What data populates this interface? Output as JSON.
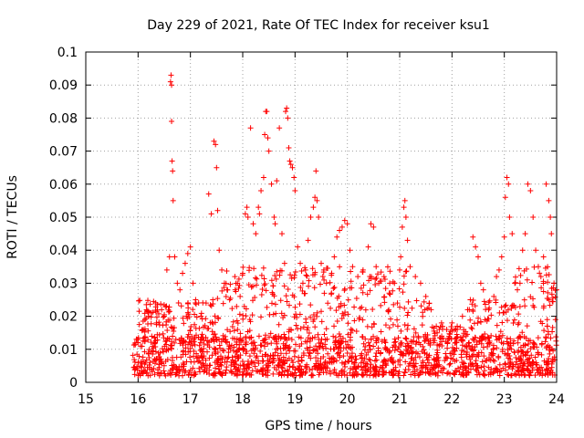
{
  "chart_data": {
    "type": "scatter",
    "title": "Day 229 of 2021, Rate Of TEC Index for receiver ksu1",
    "xlabel": "GPS time / hours",
    "ylabel": "ROTI / TECUs",
    "xlim": [
      15,
      24
    ],
    "ylim": [
      0,
      0.1
    ],
    "x_ticks": [
      "15",
      "16",
      "17",
      "18",
      "19",
      "20",
      "21",
      "22",
      "23",
      "24"
    ],
    "y_ticks": [
      "0",
      "0.01",
      "0.02",
      "0.03",
      "0.04",
      "0.05",
      "0.06",
      "0.07",
      "0.08",
      "0.09",
      "0.1"
    ],
    "grid": true,
    "legend": "none",
    "marker": "+",
    "series_color": "#ff0000",
    "points": [
      [
        16.0,
        0.012
      ],
      [
        16.1,
        0.016
      ],
      [
        16.2,
        0.02
      ],
      [
        16.25,
        0.021
      ],
      [
        16.35,
        0.018
      ],
      [
        16.45,
        0.022
      ],
      [
        16.5,
        0.02
      ],
      [
        16.55,
        0.034
      ],
      [
        16.6,
        0.038
      ],
      [
        16.62,
        0.091
      ],
      [
        16.63,
        0.093
      ],
      [
        16.64,
        0.09
      ],
      [
        16.64,
        0.079
      ],
      [
        16.65,
        0.067
      ],
      [
        16.66,
        0.064
      ],
      [
        16.67,
        0.055
      ],
      [
        16.7,
        0.038
      ],
      [
        16.75,
        0.03
      ],
      [
        16.8,
        0.028
      ],
      [
        16.85,
        0.033
      ],
      [
        16.9,
        0.036
      ],
      [
        16.95,
        0.039
      ],
      [
        17.0,
        0.041
      ],
      [
        17.05,
        0.03
      ],
      [
        17.1,
        0.025
      ],
      [
        17.2,
        0.02
      ],
      [
        17.3,
        0.024
      ],
      [
        17.35,
        0.057
      ],
      [
        17.4,
        0.051
      ],
      [
        17.45,
        0.073
      ],
      [
        17.48,
        0.072
      ],
      [
        17.5,
        0.065
      ],
      [
        17.52,
        0.052
      ],
      [
        17.55,
        0.04
      ],
      [
        17.6,
        0.034
      ],
      [
        17.65,
        0.03
      ],
      [
        17.7,
        0.028
      ],
      [
        17.75,
        0.025
      ],
      [
        17.85,
        0.032
      ],
      [
        17.9,
        0.03
      ],
      [
        17.95,
        0.026
      ],
      [
        18.0,
        0.033
      ],
      [
        18.05,
        0.051
      ],
      [
        18.08,
        0.053
      ],
      [
        18.1,
        0.05
      ],
      [
        18.15,
        0.077
      ],
      [
        18.2,
        0.048
      ],
      [
        18.25,
        0.045
      ],
      [
        18.3,
        0.053
      ],
      [
        18.32,
        0.051
      ],
      [
        18.35,
        0.058
      ],
      [
        18.4,
        0.062
      ],
      [
        18.42,
        0.075
      ],
      [
        18.44,
        0.082
      ],
      [
        18.46,
        0.082
      ],
      [
        18.48,
        0.074
      ],
      [
        18.5,
        0.07
      ],
      [
        18.55,
        0.06
      ],
      [
        18.6,
        0.05
      ],
      [
        18.62,
        0.048
      ],
      [
        18.65,
        0.061
      ],
      [
        18.7,
        0.077
      ],
      [
        18.75,
        0.045
      ],
      [
        18.8,
        0.036
      ],
      [
        18.82,
        0.082
      ],
      [
        18.84,
        0.083
      ],
      [
        18.86,
        0.08
      ],
      [
        18.88,
        0.071
      ],
      [
        18.9,
        0.067
      ],
      [
        18.92,
        0.066
      ],
      [
        18.95,
        0.065
      ],
      [
        18.98,
        0.062
      ],
      [
        19.0,
        0.058
      ],
      [
        19.05,
        0.041
      ],
      [
        19.1,
        0.036
      ],
      [
        19.15,
        0.03
      ],
      [
        19.2,
        0.034
      ],
      [
        19.25,
        0.043
      ],
      [
        19.3,
        0.05
      ],
      [
        19.35,
        0.053
      ],
      [
        19.38,
        0.056
      ],
      [
        19.4,
        0.064
      ],
      [
        19.42,
        0.055
      ],
      [
        19.45,
        0.05
      ],
      [
        19.5,
        0.036
      ],
      [
        19.55,
        0.034
      ],
      [
        19.6,
        0.03
      ],
      [
        19.7,
        0.033
      ],
      [
        19.75,
        0.038
      ],
      [
        19.8,
        0.044
      ],
      [
        19.85,
        0.046
      ],
      [
        19.9,
        0.047
      ],
      [
        19.95,
        0.049
      ],
      [
        20.0,
        0.048
      ],
      [
        20.05,
        0.04
      ],
      [
        20.1,
        0.035
      ],
      [
        20.2,
        0.032
      ],
      [
        20.3,
        0.034
      ],
      [
        20.4,
        0.041
      ],
      [
        20.45,
        0.048
      ],
      [
        20.5,
        0.047
      ],
      [
        20.55,
        0.035
      ],
      [
        20.6,
        0.03
      ],
      [
        20.7,
        0.032
      ],
      [
        20.8,
        0.027
      ],
      [
        20.9,
        0.03
      ],
      [
        21.0,
        0.034
      ],
      [
        21.02,
        0.038
      ],
      [
        21.05,
        0.047
      ],
      [
        21.08,
        0.053
      ],
      [
        21.1,
        0.055
      ],
      [
        21.12,
        0.05
      ],
      [
        21.15,
        0.043
      ],
      [
        21.2,
        0.035
      ],
      [
        21.3,
        0.032
      ],
      [
        21.4,
        0.03
      ],
      [
        21.5,
        0.026
      ],
      [
        21.6,
        0.022
      ],
      [
        21.7,
        0.017
      ],
      [
        21.8,
        0.018
      ],
      [
        21.9,
        0.016
      ],
      [
        22.0,
        0.018
      ],
      [
        22.1,
        0.017
      ],
      [
        22.2,
        0.02
      ],
      [
        22.3,
        0.022
      ],
      [
        22.35,
        0.025
      ],
      [
        22.4,
        0.044
      ],
      [
        22.45,
        0.041
      ],
      [
        22.5,
        0.038
      ],
      [
        22.55,
        0.03
      ],
      [
        22.6,
        0.028
      ],
      [
        22.7,
        0.022
      ],
      [
        22.8,
        0.026
      ],
      [
        22.85,
        0.032
      ],
      [
        22.9,
        0.034
      ],
      [
        22.95,
        0.038
      ],
      [
        23.0,
        0.044
      ],
      [
        23.02,
        0.056
      ],
      [
        23.05,
        0.062
      ],
      [
        23.08,
        0.06
      ],
      [
        23.1,
        0.05
      ],
      [
        23.15,
        0.045
      ],
      [
        23.2,
        0.03
      ],
      [
        23.25,
        0.028
      ],
      [
        23.3,
        0.03
      ],
      [
        23.35,
        0.04
      ],
      [
        23.4,
        0.045
      ],
      [
        23.45,
        0.06
      ],
      [
        23.5,
        0.058
      ],
      [
        23.55,
        0.05
      ],
      [
        23.6,
        0.04
      ],
      [
        23.65,
        0.035
      ],
      [
        23.7,
        0.032
      ],
      [
        23.75,
        0.038
      ],
      [
        23.8,
        0.06
      ],
      [
        23.85,
        0.055
      ],
      [
        23.88,
        0.05
      ],
      [
        23.9,
        0.045
      ],
      [
        23.95,
        0.03
      ],
      [
        24.0,
        0.028
      ]
    ],
    "dense_band": {
      "x_start": 15.9,
      "x_end": 24.0,
      "count": 1400,
      "y_min": 0.002,
      "y_max": 0.014
    }
  }
}
